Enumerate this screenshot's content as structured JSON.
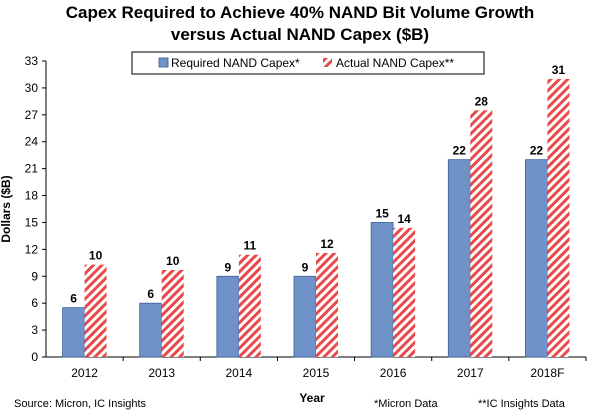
{
  "chart_data": {
    "type": "bar",
    "title_line1": "Capex Required to Achieve 40% NAND Bit Volume Growth",
    "title_line2": "versus Actual NAND Capex ($B)",
    "categories": [
      "2012",
      "2013",
      "2014",
      "2015",
      "2016",
      "2017",
      "2018F"
    ],
    "series": [
      {
        "name": "Required NAND Capex*",
        "values": [
          5.5,
          6.0,
          9.0,
          9.0,
          15.0,
          22.0,
          22.0
        ],
        "labels": [
          "6",
          "6",
          "9",
          "9",
          "15",
          "22",
          "22"
        ],
        "color": "#6f93c9",
        "pattern": "solid"
      },
      {
        "name": "Actual NAND Capex**",
        "values": [
          10.3,
          9.7,
          11.4,
          11.6,
          14.4,
          27.5,
          31.0
        ],
        "labels": [
          "10",
          "10",
          "11",
          "12",
          "14",
          "28",
          "31"
        ],
        "color": "#e8494b",
        "pattern": "diagonal-stripes"
      }
    ],
    "xlabel": "Year",
    "ylabel": "Dollars ($B)",
    "ylim": [
      0,
      33
    ],
    "yticks": [
      0,
      3,
      6,
      9,
      12,
      15,
      18,
      21,
      24,
      27,
      30,
      33
    ],
    "legend_position": "top-center"
  },
  "footer": {
    "source": "Source: Micron, IC Insights",
    "note1": "*Micron Data",
    "note2": "**IC Insights Data"
  }
}
